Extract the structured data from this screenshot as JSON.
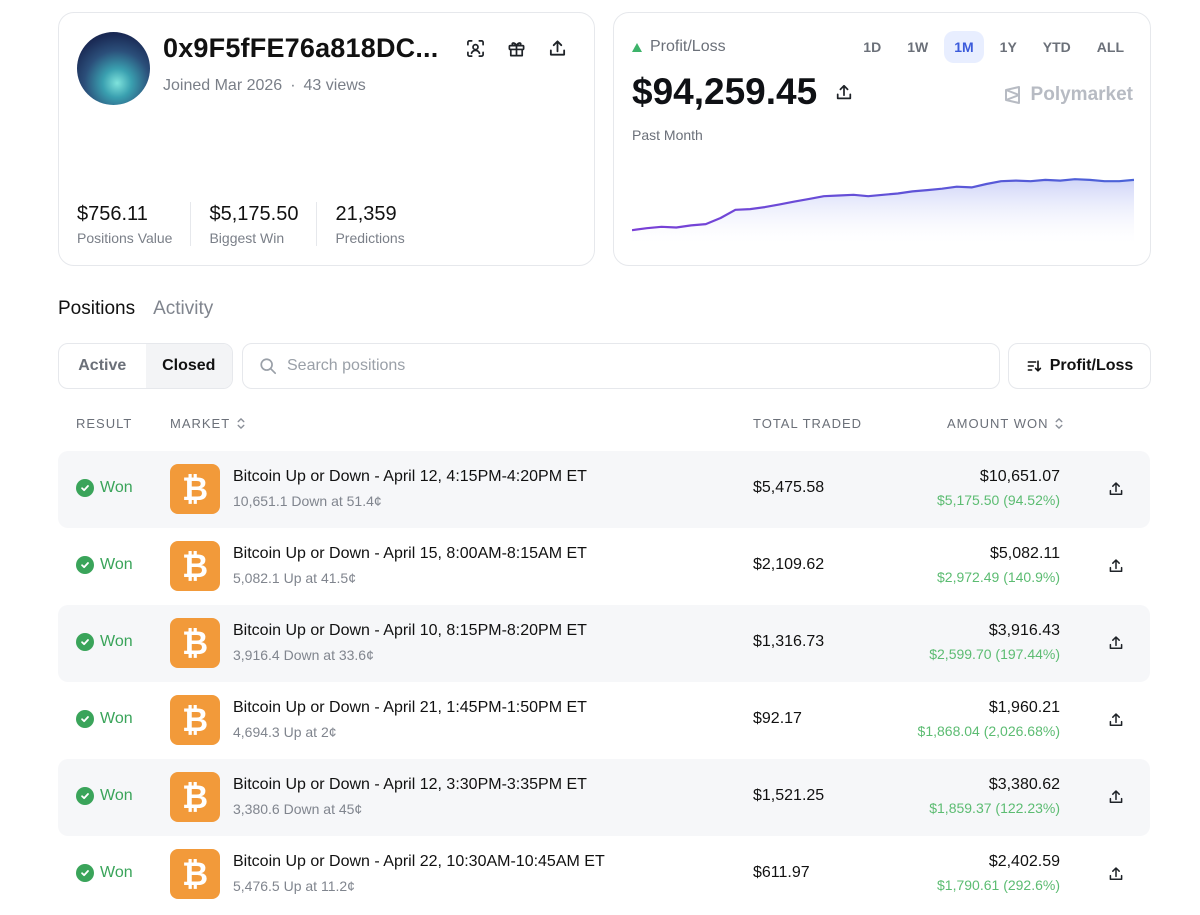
{
  "profile": {
    "address": "0x9F5fFE76a818DC...",
    "joined": "Joined Mar 2026",
    "views": "43 views",
    "icons": [
      "face-scan-icon",
      "gift-icon",
      "share-icon"
    ],
    "stats": [
      {
        "value": "$756.11",
        "label": "Positions Value"
      },
      {
        "value": "$5,175.50",
        "label": "Biggest Win"
      },
      {
        "value": "21,359",
        "label": "Predictions"
      }
    ]
  },
  "pnl": {
    "label": "Profit/Loss",
    "value": "$94,259.45",
    "period": "Past Month",
    "brand": "Polymarket",
    "ranges": [
      "1D",
      "1W",
      "1M",
      "1Y",
      "YTD",
      "ALL"
    ],
    "active_range": "1M",
    "colors": {
      "line": "#5a5ad6",
      "fill": "#e5e8fb",
      "up": "#3db36a"
    },
    "chart_data": {
      "type": "line",
      "title": "",
      "xlabel": "",
      "ylabel": "",
      "series": [
        {
          "values": [
            0.1,
            0.13,
            0.15,
            0.14,
            0.17,
            0.19,
            0.28,
            0.4,
            0.41,
            0.44,
            0.48,
            0.52,
            0.56,
            0.6,
            0.61,
            0.62,
            0.6,
            0.62,
            0.64,
            0.67,
            0.69,
            0.71,
            0.74,
            0.73,
            0.78,
            0.82,
            0.83,
            0.82,
            0.84,
            0.83,
            0.85,
            0.84,
            0.82,
            0.82,
            0.84
          ]
        }
      ],
      "grid": false
    }
  },
  "tabs": {
    "positions": "Positions",
    "activity": "Activity"
  },
  "filters": {
    "active": "Active",
    "closed": "Closed",
    "search_placeholder": "Search positions",
    "sort_label": "Profit/Loss"
  },
  "table": {
    "headers": {
      "result": "RESULT",
      "market": "MARKET",
      "total_traded": "TOTAL TRADED",
      "amount_won": "AMOUNT WON"
    },
    "rows": [
      {
        "result": "Won",
        "title": "Bitcoin Up or Down - April 12, 4:15PM-4:20PM ET",
        "sub": "10,651.1 Down at 51.4¢",
        "traded": "$5,475.58",
        "won": "$10,651.07",
        "pct": "$5,175.50 (94.52%)"
      },
      {
        "result": "Won",
        "title": "Bitcoin Up or Down - April 15, 8:00AM-8:15AM ET",
        "sub": "5,082.1 Up at 41.5¢",
        "traded": "$2,109.62",
        "won": "$5,082.11",
        "pct": "$2,972.49 (140.9%)"
      },
      {
        "result": "Won",
        "title": "Bitcoin Up or Down - April 10, 8:15PM-8:20PM ET",
        "sub": "3,916.4 Down at 33.6¢",
        "traded": "$1,316.73",
        "won": "$3,916.43",
        "pct": "$2,599.70 (197.44%)"
      },
      {
        "result": "Won",
        "title": "Bitcoin Up or Down - April 21, 1:45PM-1:50PM ET",
        "sub": "4,694.3 Up at 2¢",
        "traded": "$92.17",
        "won": "$1,960.21",
        "pct": "$1,868.04 (2,026.68%)"
      },
      {
        "result": "Won",
        "title": "Bitcoin Up or Down - April 12, 3:30PM-3:35PM ET",
        "sub": "3,380.6 Down at 45¢",
        "traded": "$1,521.25",
        "won": "$3,380.62",
        "pct": "$1,859.37 (122.23%)"
      },
      {
        "result": "Won",
        "title": "Bitcoin Up or Down - April 22, 10:30AM-10:45AM ET",
        "sub": "5,476.5 Up at 11.2¢",
        "traded": "$611.97",
        "won": "$2,402.59",
        "pct": "$1,790.61 (292.6%)"
      }
    ]
  }
}
